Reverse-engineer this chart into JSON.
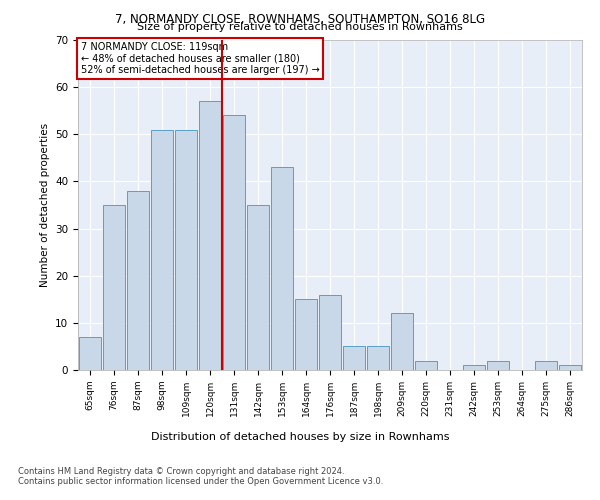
{
  "title1": "7, NORMANDY CLOSE, ROWNHAMS, SOUTHAMPTON, SO16 8LG",
  "title2": "Size of property relative to detached houses in Rownhams",
  "xlabel": "Distribution of detached houses by size in Rownhams",
  "ylabel": "Number of detached properties",
  "categories": [
    "65sqm",
    "76sqm",
    "87sqm",
    "98sqm",
    "109sqm",
    "120sqm",
    "131sqm",
    "142sqm",
    "153sqm",
    "164sqm",
    "176sqm",
    "187sqm",
    "198sqm",
    "209sqm",
    "220sqm",
    "231sqm",
    "242sqm",
    "253sqm",
    "264sqm",
    "275sqm",
    "286sqm"
  ],
  "values": [
    7,
    35,
    38,
    51,
    51,
    57,
    54,
    35,
    43,
    15,
    16,
    5,
    5,
    12,
    2,
    0,
    1,
    2,
    0,
    2,
    1
  ],
  "bar_color": "#c8d8e8",
  "bar_edge_color": "#5a9fc8",
  "bg_color": "#e8eef8",
  "grid_color": "#ffffff",
  "red_line_x": 5.5,
  "annotation_text": "7 NORMANDY CLOSE: 119sqm\n← 48% of detached houses are smaller (180)\n52% of semi-detached houses are larger (197) →",
  "annotation_box_color": "#ffffff",
  "annotation_box_edge": "#cc0000",
  "ylim": [
    0,
    70
  ],
  "yticks": [
    0,
    10,
    20,
    30,
    40,
    50,
    60,
    70
  ],
  "footer1": "Contains HM Land Registry data © Crown copyright and database right 2024.",
  "footer2": "Contains public sector information licensed under the Open Government Licence v3.0."
}
